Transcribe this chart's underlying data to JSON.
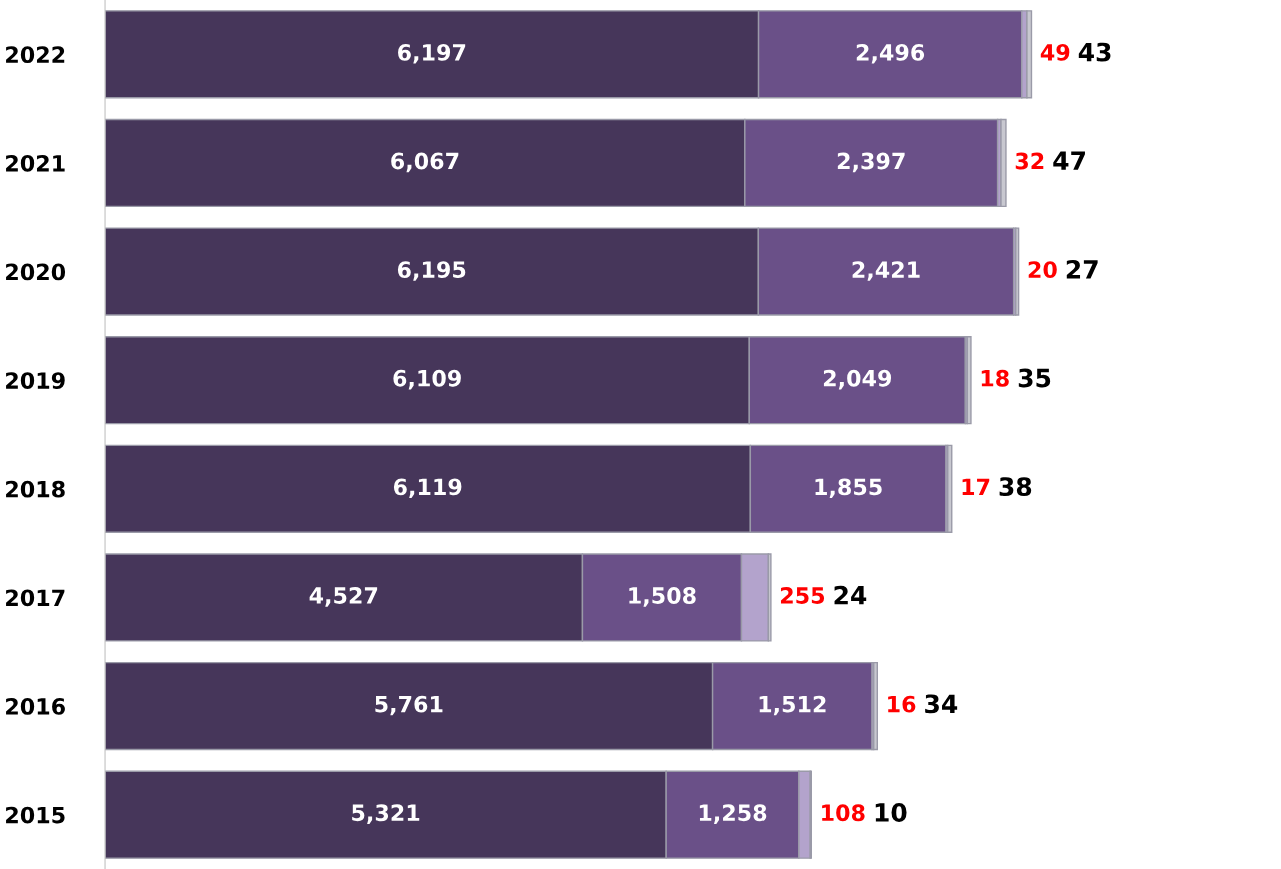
{
  "chart_data": {
    "type": "bar",
    "orientation": "horizontal",
    "stacked": true,
    "tick_labels": "y",
    "grid": false,
    "categories": [
      "2022",
      "2021",
      "2020",
      "2019",
      "2018",
      "2017",
      "2016",
      "2015"
    ],
    "series": [
      {
        "color": "#46365a",
        "values": [
          6197,
          6067,
          6195,
          6109,
          6119,
          4527,
          5761,
          5321
        ],
        "value_labels": [
          "6,197",
          "6,067",
          "6,195",
          "6,109",
          "6,119",
          "4,527",
          "5,761",
          "5,321"
        ]
      },
      {
        "color": "#6a5088",
        "values": [
          2496,
          2397,
          2421,
          2049,
          1855,
          1508,
          1512,
          1258
        ],
        "value_labels": [
          "2,496",
          "2,397",
          "2,421",
          "2,049",
          "1,855",
          "1,508",
          "1,512",
          "1,258"
        ]
      },
      {
        "color": "#b3a3cc",
        "values": [
          49,
          32,
          20,
          18,
          17,
          255,
          16,
          108
        ],
        "value_labels": [
          "49",
          "32",
          "20",
          "18",
          "17",
          "255",
          "16",
          "108"
        ]
      },
      {
        "color": "#c8c8d0",
        "values": [
          43,
          47,
          27,
          35,
          38,
          24,
          34,
          10
        ],
        "value_labels": [
          "43",
          "47",
          "27",
          "35",
          "38",
          "24",
          "34",
          "10"
        ]
      }
    ]
  }
}
